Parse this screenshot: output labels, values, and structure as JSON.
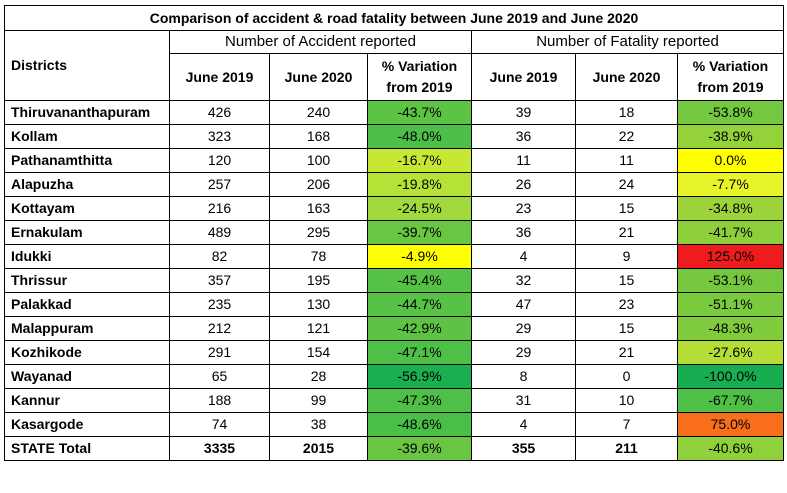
{
  "title": "Comparison of accident & road fatality between June 2019 and June 2020",
  "group_headers": {
    "accident": "Number of Accident reported",
    "fatality": "Number of Fatality reported"
  },
  "column_headers": {
    "district": "Districts",
    "june2019": "June 2019",
    "june2020": "June 2020",
    "variation": "% Variation from 2019"
  },
  "rows": [
    {
      "district": "Thiruvananthapuram",
      "acc2019": "426",
      "acc2020": "240",
      "accVar": "-43.7%",
      "accColor": "#5cc345",
      "fat2019": "39",
      "fat2020": "18",
      "fatVar": "-53.8%",
      "fatColor": "#73c83f"
    },
    {
      "district": "Kollam",
      "acc2019": "323",
      "acc2020": "168",
      "accVar": "-48.0%",
      "accColor": "#4cbf48",
      "fat2019": "36",
      "fat2020": "22",
      "fatVar": "-38.9%",
      "fatColor": "#94d23a"
    },
    {
      "district": "Pathanamthitta",
      "acc2019": "120",
      "acc2020": "100",
      "accVar": "-16.7%",
      "accColor": "#c7e832",
      "fat2019": "11",
      "fat2020": "11",
      "fatVar": "0.0%",
      "fatColor": "#ffff00"
    },
    {
      "district": "Alapuzha",
      "acc2019": "257",
      "acc2020": "206",
      "accVar": "-19.8%",
      "accColor": "#b6e237",
      "fat2019": "26",
      "fat2020": "24",
      "fatVar": "-7.7%",
      "fatColor": "#e8f42a"
    },
    {
      "district": "Kottayam",
      "acc2019": "216",
      "acc2020": "163",
      "accVar": "-24.5%",
      "accColor": "#a1da3c",
      "fat2019": "23",
      "fat2020": "15",
      "fatVar": "-34.8%",
      "fatColor": "#9cd33a"
    },
    {
      "district": "Ernakulam",
      "acc2019": "489",
      "acc2020": "295",
      "accVar": "-39.7%",
      "accColor": "#69c642",
      "fat2019": "36",
      "fat2020": "21",
      "fatVar": "-41.7%",
      "fatColor": "#8ccf3b"
    },
    {
      "district": "Idukki",
      "acc2019": "82",
      "acc2020": "78",
      "accVar": "-4.9%",
      "accColor": "#ffff00",
      "fat2019": "4",
      "fat2020": "9",
      "fatVar": "125.0%",
      "fatColor": "#ee1c1c"
    },
    {
      "district": "Thrissur",
      "acc2019": "357",
      "acc2020": "195",
      "accVar": "-45.4%",
      "accColor": "#55c146",
      "fat2019": "32",
      "fat2020": "15",
      "fatVar": "-53.1%",
      "fatColor": "#75c83e"
    },
    {
      "district": "Palakkad",
      "acc2019": "235",
      "acc2020": "130",
      "accVar": "-44.7%",
      "accColor": "#58c246",
      "fat2019": "47",
      "fat2020": "23",
      "fatVar": "-51.1%",
      "fatColor": "#7aca3e"
    },
    {
      "district": "Malappuram",
      "acc2019": "212",
      "acc2020": "121",
      "accVar": "-42.9%",
      "accColor": "#5ec344",
      "fat2019": "29",
      "fat2020": "15",
      "fatVar": "-48.3%",
      "fatColor": "#80cc3d"
    },
    {
      "district": "Kozhikode",
      "acc2019": "291",
      "acc2020": "154",
      "accVar": "-47.1%",
      "accColor": "#4fc047",
      "fat2019": "29",
      "fat2020": "21",
      "fatVar": "-27.6%",
      "fatColor": "#b4dd35"
    },
    {
      "district": "Wayanad",
      "acc2019": "65",
      "acc2020": "28",
      "accVar": "-56.9%",
      "accColor": "#1aaf4f",
      "fat2019": "8",
      "fat2020": "0",
      "fatVar": "-100.0%",
      "fatColor": "#16ae50"
    },
    {
      "district": "Kannur",
      "acc2019": "188",
      "acc2020": "99",
      "accVar": "-47.3%",
      "accColor": "#4fc047",
      "fat2019": "31",
      "fat2020": "10",
      "fatVar": "-67.7%",
      "fatColor": "#50bf46"
    },
    {
      "district": "Kasargode",
      "acc2019": "74",
      "acc2020": "38",
      "accVar": "-48.6%",
      "accColor": "#4abf48",
      "fat2019": "4",
      "fat2020": "7",
      "fatVar": "75.0%",
      "fatColor": "#f86e1b"
    }
  ],
  "total": {
    "district": "STATE Total",
    "acc2019": "3335",
    "acc2020": "2015",
    "accVar": "-39.6%",
    "accColor": "#6ac642",
    "fat2019": "355",
    "fat2020": "211",
    "fatVar": "-40.6%",
    "fatColor": "#8fd03b"
  }
}
